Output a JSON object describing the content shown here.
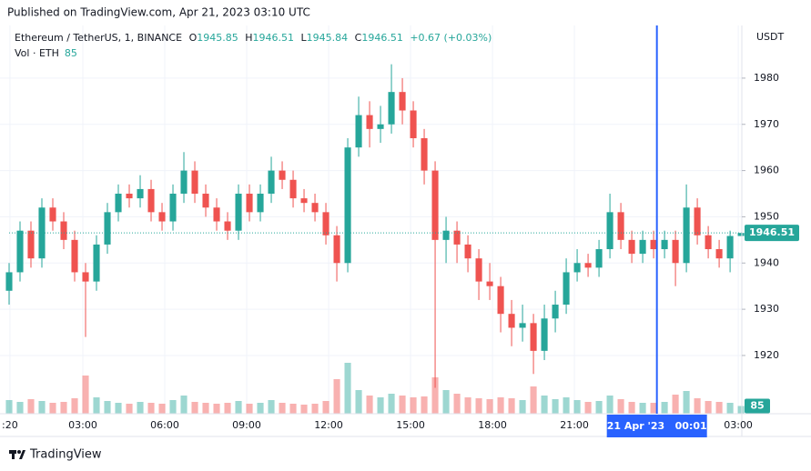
{
  "header": {
    "published": "Published on TradingView.com, Apr 21, 2023 03:10 UTC"
  },
  "chart_data": {
    "type": "candlestick",
    "symbol": "Ethereum / TetherUS, 1, BINANCE",
    "legend_labels": {
      "open": "O",
      "high": "H",
      "low": "L",
      "close": "C"
    },
    "change": "+0.67 (+0.03%)",
    "volume_label": "Vol · ETH",
    "y_axis_label": "USDT",
    "up_color": "#26a69a",
    "down_color": "#ef5350",
    "x": [
      0.3,
      0.7,
      1.1,
      1.5,
      1.9,
      2.3,
      2.7,
      3.1,
      3.5,
      3.9,
      4.3,
      4.7,
      5.1,
      5.5,
      5.9,
      6.3,
      6.7,
      7.1,
      7.5,
      7.9,
      8.3,
      8.7,
      9.1,
      9.5,
      9.9,
      10.3,
      10.7,
      11.1,
      11.5,
      11.9,
      12.3,
      12.7,
      13.1,
      13.5,
      13.9,
      14.3,
      14.7,
      15.1,
      15.5,
      15.9,
      16.3,
      16.7,
      17.1,
      17.5,
      17.9,
      18.3,
      18.7,
      19.1,
      19.5,
      19.9,
      20.3,
      20.7,
      21.1,
      21.5,
      21.9,
      22.3,
      22.7,
      23.1,
      23.5,
      23.9,
      24.3,
      24.7,
      25.1,
      25.5,
      25.9,
      26.3,
      26.7,
      27.1
    ],
    "open": [
      1934,
      1938,
      1947,
      1941,
      1952,
      1949,
      1945,
      1938,
      1936,
      1944,
      1951,
      1955,
      1954,
      1956,
      1951,
      1949,
      1955,
      1960,
      1955,
      1952,
      1949,
      1947,
      1955,
      1951,
      1955,
      1960,
      1958,
      1954,
      1953,
      1951,
      1946,
      1940,
      1965,
      1972,
      1969,
      1970,
      1977,
      1973,
      1967,
      1960,
      1945,
      1947,
      1944,
      1941,
      1936,
      1935,
      1929,
      1926,
      1927,
      1921,
      1928,
      1931,
      1938,
      1940,
      1939,
      1943,
      1951,
      1945,
      1942,
      1945,
      1943,
      1945,
      1940,
      1952,
      1946,
      1943,
      1941,
      1945.85
    ],
    "high": [
      1940,
      1949,
      1949,
      1954,
      1954,
      1951,
      1947,
      1940,
      1946,
      1953,
      1957,
      1957,
      1959,
      1958,
      1953,
      1957,
      1964,
      1962,
      1957,
      1954,
      1951,
      1957,
      1957,
      1957,
      1963,
      1962,
      1960,
      1956,
      1955,
      1953,
      1948,
      1967,
      1976,
      1975,
      1974,
      1983,
      1980,
      1975,
      1969,
      1962,
      1950,
      1949,
      1946,
      1943,
      1940,
      1937,
      1932,
      1931,
      1929,
      1931,
      1934,
      1941,
      1943,
      1942,
      1945,
      1955,
      1953,
      1947,
      1947,
      1947,
      1947,
      1947,
      1957,
      1954,
      1948,
      1945,
      1947,
      1946.51
    ],
    "low": [
      1931,
      1936,
      1939,
      1939,
      1947,
      1943,
      1936,
      1924,
      1934,
      1942,
      1949,
      1952,
      1952,
      1949,
      1947,
      1947,
      1953,
      1953,
      1950,
      1947,
      1945,
      1945,
      1949,
      1949,
      1953,
      1956,
      1952,
      1951,
      1949,
      1944,
      1936,
      1938,
      1963,
      1965,
      1966,
      1968,
      1970,
      1965,
      1957,
      1913,
      1940,
      1940,
      1938,
      1932,
      1932,
      1925,
      1922,
      1923,
      1916,
      1919,
      1925,
      1929,
      1936,
      1937,
      1937,
      1941,
      1943,
      1940,
      1940,
      1941,
      1941,
      1935,
      1938,
      1944,
      1941,
      1939,
      1938,
      1945.84
    ],
    "close": [
      1938,
      1947,
      1941,
      1952,
      1949,
      1945,
      1938,
      1936,
      1944,
      1951,
      1955,
      1954,
      1956,
      1951,
      1949,
      1955,
      1960,
      1955,
      1952,
      1949,
      1947,
      1955,
      1951,
      1955,
      1960,
      1958,
      1954,
      1953,
      1951,
      1946,
      1940,
      1965,
      1972,
      1969,
      1970,
      1977,
      1973,
      1967,
      1960,
      1945,
      1947,
      1944,
      1941,
      1936,
      1935,
      1929,
      1926,
      1927,
      1921,
      1928,
      1931,
      1938,
      1940,
      1939,
      1943,
      1951,
      1945,
      1942,
      1945,
      1943,
      1945,
      1940,
      1952,
      1946,
      1943,
      1941,
      1945.85,
      1946.51
    ],
    "volume": [
      150,
      130,
      160,
      140,
      120,
      130,
      170,
      420,
      180,
      140,
      120,
      110,
      130,
      120,
      110,
      150,
      200,
      130,
      120,
      110,
      120,
      140,
      110,
      120,
      150,
      120,
      110,
      100,
      110,
      140,
      380,
      560,
      260,
      200,
      180,
      220,
      200,
      180,
      190,
      400,
      260,
      220,
      180,
      170,
      160,
      180,
      170,
      150,
      300,
      200,
      160,
      180,
      150,
      130,
      140,
      200,
      160,
      130,
      120,
      120,
      130,
      210,
      250,
      170,
      140,
      130,
      120,
      85
    ],
    "ylim": [
      1907.4,
      1991
    ],
    "yticks": [
      1920,
      1930,
      1940,
      1950,
      1960,
      1970,
      1980
    ],
    "xlim": [
      0.3,
      27.13
    ],
    "xticks": [
      {
        "value": 0.33,
        "label": ":20"
      },
      {
        "value": 3,
        "label": "03:00"
      },
      {
        "value": 6,
        "label": "06:00"
      },
      {
        "value": 9,
        "label": "09:00"
      },
      {
        "value": 12,
        "label": "12:00"
      },
      {
        "value": 15,
        "label": "15:00"
      },
      {
        "value": 18,
        "label": "18:00"
      },
      {
        "value": 21,
        "label": "21:00"
      },
      {
        "value": 27,
        "label": "03:00"
      }
    ],
    "vlim": [
      0,
      600
    ],
    "grid": true,
    "crosshair": {
      "x": 24.02,
      "label": "21 Apr '23   00:01"
    }
  },
  "footer": {
    "brand": "TradingView"
  }
}
